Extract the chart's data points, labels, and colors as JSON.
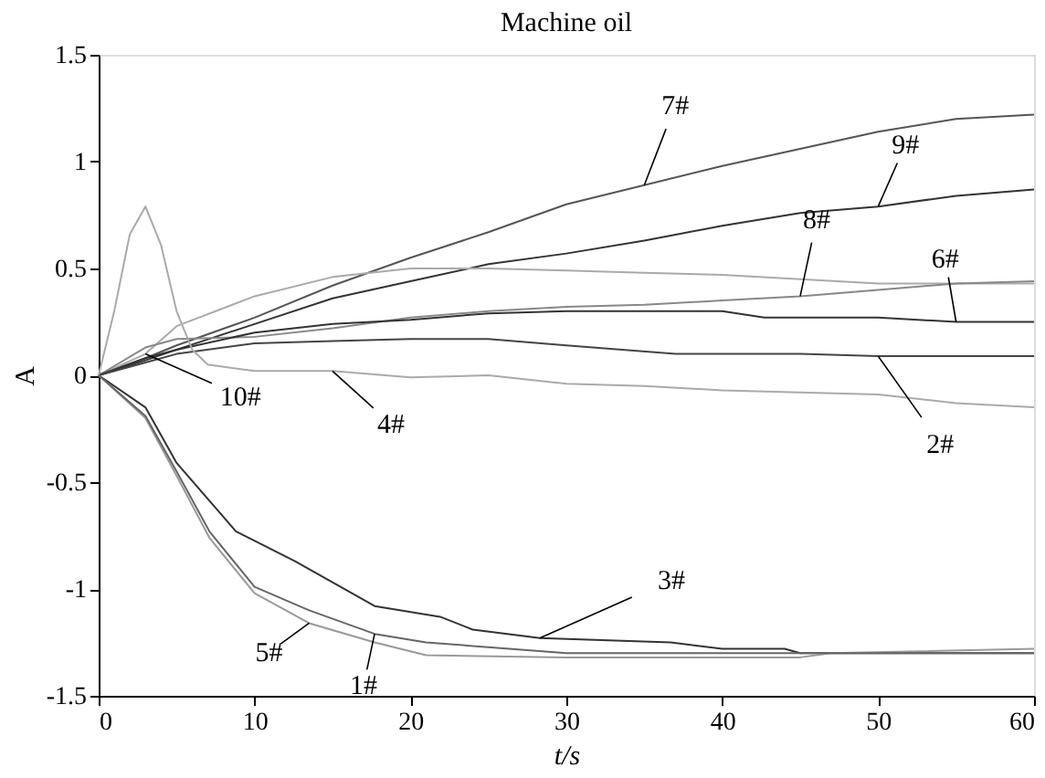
{
  "chart_data": {
    "type": "line",
    "title": "Machine oil",
    "xlabel": "t/s",
    "ylabel": "A",
    "xlim": [
      0,
      60
    ],
    "ylim": [
      -1.5,
      1.5
    ],
    "xticks": [
      0,
      10,
      20,
      30,
      40,
      50,
      60
    ],
    "yticks": [
      -1.5,
      -1,
      -0.5,
      0,
      0.5,
      1,
      1.5
    ],
    "grid": false,
    "legend": false,
    "marker": "none",
    "line_style": "solid",
    "series": [
      {
        "name": "7#",
        "color": "#555555",
        "x": [
          0,
          3,
          5,
          10,
          15,
          20,
          25,
          30,
          35,
          40,
          45,
          50,
          55,
          60
        ],
        "values": [
          0,
          0.08,
          0.14,
          0.27,
          0.42,
          0.55,
          0.67,
          0.8,
          0.89,
          0.98,
          1.06,
          1.14,
          1.2,
          1.22
        ]
      },
      {
        "name": "9#",
        "color": "#333333",
        "x": [
          0,
          3,
          5,
          10,
          15,
          20,
          25,
          30,
          35,
          40,
          45,
          50,
          55,
          60
        ],
        "values": [
          0,
          0.07,
          0.12,
          0.24,
          0.36,
          0.44,
          0.52,
          0.57,
          0.63,
          0.7,
          0.76,
          0.79,
          0.84,
          0.87
        ]
      },
      {
        "name": "10#",
        "color": "#aaaaaa",
        "x": [
          0,
          3,
          5,
          10,
          15,
          20,
          25,
          30,
          35,
          40,
          45,
          50,
          55,
          60
        ],
        "values": [
          0,
          0.1,
          0.23,
          0.37,
          0.46,
          0.5,
          0.5,
          0.49,
          0.48,
          0.47,
          0.45,
          0.43,
          0.43,
          0.43
        ]
      },
      {
        "name": "8#",
        "color": "#888888",
        "x": [
          0,
          3,
          5,
          10,
          15,
          20,
          25,
          30,
          35,
          40,
          45,
          50,
          55,
          60
        ],
        "values": [
          0,
          0.13,
          0.17,
          0.18,
          0.22,
          0.27,
          0.3,
          0.32,
          0.33,
          0.35,
          0.37,
          0.4,
          0.43,
          0.44
        ]
      },
      {
        "name": "6#",
        "color": "#333333",
        "x": [
          0,
          3,
          5,
          10,
          15,
          20,
          25,
          30,
          35,
          40,
          42.7,
          45,
          50,
          55,
          60
        ],
        "values": [
          0,
          0.08,
          0.12,
          0.2,
          0.24,
          0.26,
          0.29,
          0.3,
          0.3,
          0.3,
          0.27,
          0.27,
          0.27,
          0.25,
          0.25
        ]
      },
      {
        "name": "2#",
        "color": "#444444",
        "x": [
          0,
          3,
          5,
          10,
          15,
          20,
          25,
          30,
          37,
          45,
          50,
          60
        ],
        "values": [
          0,
          0.06,
          0.1,
          0.15,
          0.16,
          0.17,
          0.17,
          0.14,
          0.1,
          0.1,
          0.09,
          0.09
        ]
      },
      {
        "name": "4#",
        "color": "#aaaaaa",
        "x": [
          0,
          1,
          2,
          3,
          4,
          5,
          6,
          7,
          10,
          15,
          20,
          25,
          30,
          35,
          40,
          45,
          50,
          55,
          60
        ],
        "values": [
          0,
          0.3,
          0.66,
          0.79,
          0.61,
          0.3,
          0.12,
          0.05,
          0.02,
          0.02,
          -0.01,
          0,
          -0.04,
          -0.05,
          -0.07,
          -0.08,
          -0.09,
          -0.13,
          -0.15
        ]
      },
      {
        "name": "3#",
        "color": "#333333",
        "x": [
          0,
          3,
          5,
          8.8,
          12.6,
          17.7,
          21.9,
          24,
          28.3,
          36.7,
          40,
          44,
          45,
          60
        ],
        "values": [
          0,
          -0.15,
          -0.41,
          -0.73,
          -0.87,
          -1.08,
          -1.13,
          -1.19,
          -1.23,
          -1.25,
          -1.28,
          -1.28,
          -1.3,
          -1.3
        ]
      },
      {
        "name": "5#",
        "color": "#999999",
        "x": [
          0,
          3,
          5,
          7.1,
          10,
          13.5,
          17.7,
          21,
          30,
          45,
          47,
          60
        ],
        "values": [
          0,
          -0.2,
          -0.47,
          -0.76,
          -1.02,
          -1.16,
          -1.25,
          -1.31,
          -1.32,
          -1.32,
          -1.3,
          -1.28
        ]
      },
      {
        "name": "1#",
        "color": "#666666",
        "x": [
          0,
          3,
          5,
          7.1,
          10,
          13.5,
          17.7,
          21,
          30,
          50,
          60
        ],
        "values": [
          0,
          -0.19,
          -0.45,
          -0.73,
          -0.99,
          -1.1,
          -1.21,
          -1.25,
          -1.3,
          -1.3,
          -1.3
        ]
      }
    ]
  }
}
